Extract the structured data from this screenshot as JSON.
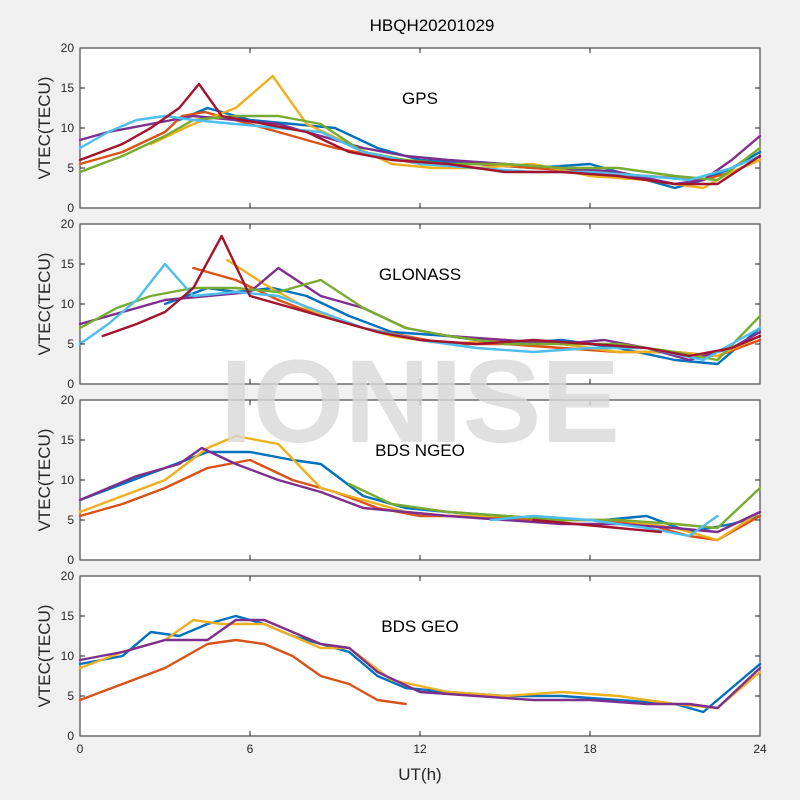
{
  "figure": {
    "title": "HBQH20201029",
    "watermark": "IONISE",
    "xlabel": "UT(h)",
    "ylabel": "VTEC(TECU)"
  },
  "palette": [
    "#0072bd",
    "#d95319",
    "#edb120",
    "#7e2f8e",
    "#77ac30",
    "#4dbeee",
    "#a2142f"
  ],
  "chart_data": [
    {
      "type": "line",
      "panel_label": "GPS",
      "xlim": [
        0,
        24
      ],
      "ylim": [
        0,
        20
      ],
      "xticks": [
        0,
        6,
        12,
        18,
        24
      ],
      "yticks": [
        0,
        5,
        10,
        15,
        20
      ],
      "series": [
        {
          "color": "#0072bd",
          "x": [
            3.5,
            4.5,
            6,
            7.5,
            9,
            10.5,
            12,
            14,
            16,
            18,
            19.5,
            21,
            22,
            23,
            24
          ],
          "y": [
            11,
            12.5,
            11,
            10.5,
            10,
            7.5,
            6,
            5.5,
            5,
            5.5,
            4,
            2.5,
            3.5,
            5,
            7
          ]
        },
        {
          "color": "#d95319",
          "x": [
            0,
            1.5,
            3,
            3.6,
            4.4,
            6,
            7.5,
            9,
            10.5,
            12,
            14,
            16,
            18,
            20,
            22,
            23,
            24
          ],
          "y": [
            5.5,
            7,
            9.5,
            11.5,
            12,
            10.5,
            9,
            7.5,
            6.5,
            5.5,
            5.5,
            5,
            4.5,
            4,
            3.5,
            4.5,
            6
          ]
        },
        {
          "color": "#edb120",
          "x": [
            2.5,
            4,
            5.5,
            6.8,
            8,
            9.5,
            11,
            12.5,
            14,
            16,
            18,
            20,
            22,
            23,
            24
          ],
          "y": [
            8,
            10.5,
            12.5,
            16.5,
            10.5,
            8,
            5.5,
            5,
            5,
            5.5,
            4,
            3.5,
            2.5,
            4.5,
            6
          ]
        },
        {
          "color": "#7e2f8e",
          "x": [
            0,
            1,
            2.5,
            4,
            5.5,
            7,
            8.5,
            10,
            11.5,
            13,
            15,
            17,
            19,
            21,
            22,
            23,
            24
          ],
          "y": [
            8.5,
            9.5,
            10.5,
            11.5,
            11,
            10.5,
            9,
            7.5,
            6.5,
            6,
            5.5,
            5,
            4.5,
            3,
            3.5,
            6,
            9
          ]
        },
        {
          "color": "#77ac30",
          "x": [
            0,
            1.5,
            3,
            4,
            5.5,
            7,
            8.5,
            10,
            11.5,
            13,
            15,
            17,
            19,
            21,
            22.5,
            24
          ],
          "y": [
            4.5,
            6.5,
            9,
            11,
            11.5,
            11.5,
            10.5,
            7,
            6,
            5.5,
            5.5,
            5,
            5,
            4,
            3.5,
            7.5
          ]
        },
        {
          "color": "#4dbeee",
          "x": [
            0,
            1,
            2,
            3,
            4,
            5.5,
            7,
            8.5,
            10,
            12,
            14,
            16,
            18,
            20,
            21.5,
            23,
            24
          ],
          "y": [
            7.5,
            9.5,
            11,
            11.5,
            11,
            10.5,
            10,
            9.5,
            7,
            5.5,
            5,
            4.5,
            4.5,
            4,
            3.5,
            5,
            6.5
          ]
        },
        {
          "color": "#a2142f",
          "x": [
            0,
            1.5,
            2.5,
            3.5,
            4.2,
            5,
            6.5,
            8,
            9.5,
            11,
            13,
            15,
            17,
            19,
            21,
            22.5,
            24
          ],
          "y": [
            6,
            8,
            10,
            12.5,
            15.5,
            11.5,
            10.5,
            9.5,
            7,
            6,
            5.5,
            4.5,
            4.5,
            4,
            3,
            3,
            6.5
          ]
        }
      ]
    },
    {
      "type": "line",
      "panel_label": "GLONASS",
      "xlim": [
        0,
        24
      ],
      "ylim": [
        0,
        20
      ],
      "xticks": [
        0,
        6,
        12,
        18,
        24
      ],
      "yticks": [
        0,
        5,
        10,
        15,
        20
      ],
      "series": [
        {
          "color": "#0072bd",
          "x": [
            3,
            4.5,
            5.5,
            6.8,
            8,
            9.5,
            11,
            13,
            15,
            17,
            19,
            21,
            22.5,
            24
          ],
          "y": [
            10,
            12,
            11.5,
            12,
            11,
            8.5,
            6.5,
            6,
            5,
            5.5,
            4.5,
            3,
            2.5,
            7
          ]
        },
        {
          "color": "#d95319",
          "x": [
            4,
            5.5,
            7,
            8.5,
            10,
            11.5,
            13,
            15,
            17,
            19,
            21,
            22.5,
            24
          ],
          "y": [
            14.5,
            13,
            10.5,
            8.5,
            7,
            6,
            5,
            5,
            4.5,
            4,
            4,
            3.5,
            5.5
          ]
        },
        {
          "color": "#edb120",
          "x": [
            5.2,
            6.5,
            8,
            9.5,
            11,
            13,
            15,
            17,
            19,
            21,
            22.5,
            24
          ],
          "y": [
            15.5,
            12.5,
            9.5,
            7.5,
            6,
            5,
            5.5,
            5,
            4,
            4,
            3.5,
            6
          ]
        },
        {
          "color": "#7e2f8e",
          "x": [
            0,
            1.5,
            3,
            4.5,
            6,
            7,
            8.5,
            10,
            11.5,
            13,
            15,
            17,
            18.5,
            20,
            21.5,
            23,
            24
          ],
          "y": [
            7.5,
            9,
            10.5,
            11,
            11.5,
            14.5,
            11,
            9.5,
            7,
            6,
            5.5,
            5,
            5.5,
            4.5,
            3,
            4.5,
            6.5
          ]
        },
        {
          "color": "#77ac30",
          "x": [
            0,
            1.3,
            2.5,
            4,
            5.5,
            7,
            8.5,
            10,
            11.5,
            13,
            15,
            17,
            19,
            21,
            22.5,
            24
          ],
          "y": [
            7,
            9.5,
            11,
            12,
            12,
            11.5,
            13,
            9.5,
            7,
            6,
            5,
            5,
            5,
            4,
            3,
            8.5
          ]
        },
        {
          "color": "#4dbeee",
          "x": [
            0,
            1,
            2,
            3,
            4,
            5.5,
            7,
            8.5,
            10,
            12,
            14,
            16,
            18,
            20,
            22,
            23,
            24
          ],
          "y": [
            5,
            7.5,
            10.5,
            15,
            11,
            11.5,
            11,
            9,
            7,
            5.5,
            4.5,
            4,
            4.5,
            4.5,
            3,
            5,
            7
          ]
        },
        {
          "color": "#a2142f",
          "x": [
            0.8,
            2,
            3,
            4,
            5,
            6,
            7.5,
            9,
            10.5,
            12,
            14,
            16,
            18,
            20,
            21.5,
            23,
            24
          ],
          "y": [
            6,
            7.5,
            9,
            12,
            18.5,
            11,
            9.5,
            8,
            6.5,
            5.5,
            5,
            5.5,
            5,
            4.5,
            3.5,
            4.5,
            6
          ]
        }
      ]
    },
    {
      "type": "line",
      "panel_label": "BDS NGEO",
      "xlim": [
        0,
        24
      ],
      "ylim": [
        0,
        20
      ],
      "xticks": [
        0,
        6,
        12,
        18,
        24
      ],
      "yticks": [
        0,
        5,
        10,
        15,
        20
      ],
      "series": [
        {
          "color": "#0072bd",
          "x": [
            0,
            1.5,
            3,
            4.5,
            6,
            7.5,
            8.5,
            10,
            11.5,
            13,
            15,
            17,
            18.5,
            20,
            21.5,
            23,
            24
          ],
          "y": [
            7.5,
            9.5,
            11.5,
            13.5,
            13.5,
            12.5,
            12,
            8,
            6.5,
            6,
            5.5,
            5,
            5,
            5.5,
            3.5,
            4.5,
            5.5
          ]
        },
        {
          "color": "#d95319",
          "x": [
            0,
            1.5,
            3,
            4.5,
            6,
            7.5,
            9,
            10.5,
            12,
            14,
            16,
            18,
            20,
            21.5,
            22.5,
            24
          ],
          "y": [
            5.5,
            7,
            9,
            11.5,
            12.5,
            10,
            8.5,
            6.5,
            5.5,
            5.5,
            5,
            5,
            4.5,
            3,
            2.5,
            5.5
          ]
        },
        {
          "color": "#edb120",
          "x": [
            0,
            1.5,
            3,
            4.5,
            5.5,
            7,
            8.5,
            10,
            11.5,
            13,
            15,
            17,
            19,
            21,
            22.5,
            24
          ],
          "y": [
            6,
            8,
            10,
            14,
            15.5,
            14.5,
            9,
            7.5,
            6,
            5.5,
            5.5,
            5,
            5,
            4,
            2.5,
            6
          ]
        },
        {
          "color": "#7e2f8e",
          "x": [
            0,
            2,
            3.5,
            4.3,
            5.5,
            7,
            8.5,
            10,
            11.5,
            13,
            15,
            17,
            19,
            21,
            22.5,
            24
          ],
          "y": [
            7.5,
            10.5,
            12,
            14,
            12,
            10,
            8.5,
            6.5,
            6,
            5.5,
            5,
            4.5,
            4.5,
            4,
            3.5,
            6
          ]
        },
        {
          "color": "#77ac30",
          "x": [
            9.5,
            11,
            13,
            15,
            17,
            19,
            21,
            22.5,
            24
          ],
          "y": [
            9.5,
            7,
            6,
            5.5,
            5,
            5,
            4.5,
            4,
            9
          ]
        },
        {
          "color": "#4dbeee",
          "x": [
            14.5,
            16,
            18,
            20,
            21.5,
            22.5
          ],
          "y": [
            5,
            5.5,
            5,
            4,
            3,
            5.5
          ]
        },
        {
          "color": "#a2142f",
          "x": [
            16,
            17.5,
            19,
            20.5
          ],
          "y": [
            5,
            4.5,
            4,
            3.5
          ]
        }
      ]
    },
    {
      "type": "line",
      "panel_label": "BDS GEO",
      "xlim": [
        0,
        24
      ],
      "ylim": [
        0,
        20
      ],
      "xticks": [
        0,
        6,
        12,
        18,
        24
      ],
      "yticks": [
        0,
        5,
        10,
        15,
        20
      ],
      "series": [
        {
          "color": "#0072bd",
          "x": [
            0,
            1.5,
            2.5,
            3.5,
            4.5,
            5.5,
            6.5,
            7.5,
            8.5,
            9.5,
            10.5,
            11.5,
            13,
            15,
            17,
            19,
            21,
            22,
            23,
            24
          ],
          "y": [
            9,
            10,
            13,
            12.5,
            14,
            15,
            14,
            12.5,
            11.5,
            10.5,
            7.5,
            6,
            5.5,
            5,
            5,
            4.5,
            4,
            3,
            6,
            9
          ]
        },
        {
          "color": "#d95319",
          "x": [
            0,
            1.5,
            3,
            4.5,
            5.5,
            6.5,
            7.5,
            8.5,
            9.5,
            10.5,
            11.5
          ],
          "y": [
            4.5,
            6.5,
            8.5,
            11.5,
            12,
            11.5,
            10,
            7.5,
            6.5,
            4.5,
            4
          ]
        },
        {
          "color": "#edb120",
          "x": [
            0,
            1.5,
            3,
            4,
            5,
            6.5,
            7.5,
            8.5,
            9.5,
            11,
            13,
            15,
            17,
            19,
            21,
            22.5,
            24
          ],
          "y": [
            8.5,
            10.5,
            12,
            14.5,
            14,
            14,
            12.5,
            11,
            11,
            7,
            5.5,
            5,
            5.5,
            5,
            4,
            3.5,
            8
          ]
        },
        {
          "color": "#7e2f8e",
          "x": [
            0,
            1.5,
            3,
            4.5,
            5.5,
            6.5,
            7.5,
            8.5,
            9.5,
            10.5,
            12,
            14,
            16,
            18,
            20,
            21.5,
            22.5,
            24
          ],
          "y": [
            9.5,
            10.5,
            12,
            12,
            14.5,
            14.5,
            13,
            11.5,
            11,
            8,
            5.5,
            5,
            4.5,
            4.5,
            4,
            4,
            3.5,
            8.5
          ]
        }
      ]
    }
  ]
}
